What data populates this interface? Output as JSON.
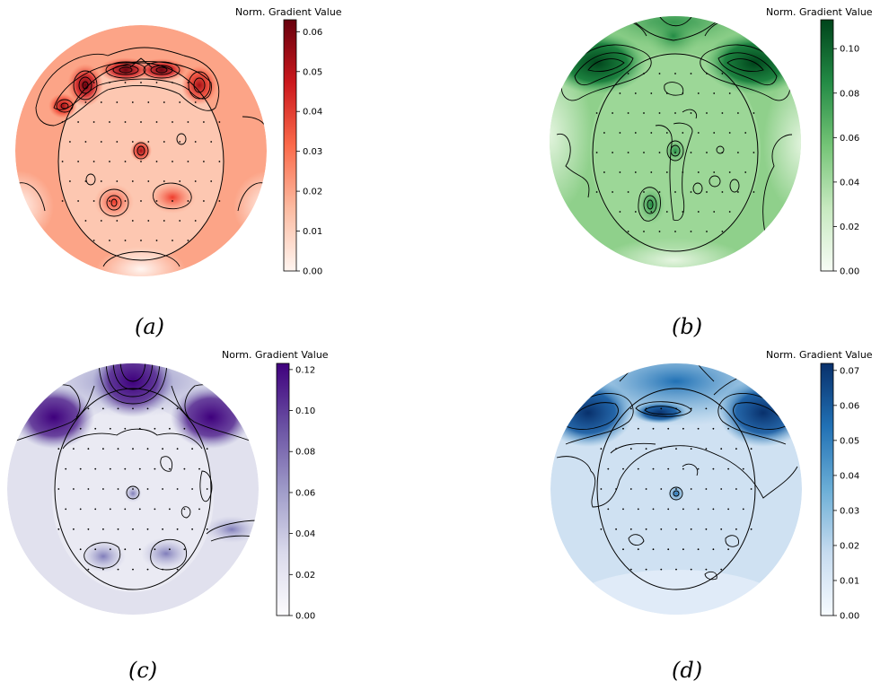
{
  "chart_data": [
    {
      "type": "heatmap",
      "subtype": "eeg-topomap",
      "panel_label": "(a)",
      "colorbar_title": "Norm. Gradient Value",
      "colormap": "Reds",
      "colors": {
        "low": "#fff5f0",
        "mid": "#fb6a4a",
        "high": "#67000d"
      },
      "vmin": 0.0,
      "vmax": 0.063,
      "ticks": [
        0.0,
        0.01,
        0.02,
        0.03,
        0.04,
        0.05,
        0.06
      ],
      "tick_labels": [
        "0.00",
        "0.01",
        "0.02",
        "0.03",
        "0.04",
        "0.05",
        "0.06"
      ],
      "background_value": 0.022,
      "hotspots": [
        {
          "region": "frontal-pole-left-center",
          "value": 0.063
        },
        {
          "region": "frontal-pole-right-center",
          "value": 0.06
        },
        {
          "region": "frontal-left",
          "value": 0.055
        },
        {
          "region": "frontal-right",
          "value": 0.052
        },
        {
          "region": "far-frontal-left",
          "value": 0.05
        },
        {
          "region": "central",
          "value": 0.04
        },
        {
          "region": "parietal-left",
          "value": 0.035
        },
        {
          "region": "parietal-right",
          "value": 0.03
        }
      ]
    },
    {
      "type": "heatmap",
      "subtype": "eeg-topomap",
      "panel_label": "(b)",
      "colorbar_title": "Norm. Gradient Value",
      "colormap": "Greens",
      "colors": {
        "low": "#f7fcf5",
        "mid": "#74c476",
        "high": "#00441b"
      },
      "vmin": 0.0,
      "vmax": 0.113,
      "ticks": [
        0.0,
        0.02,
        0.04,
        0.06,
        0.08,
        0.1
      ],
      "tick_labels": [
        "0.00",
        "0.02",
        "0.04",
        "0.06",
        "0.08",
        "0.10"
      ],
      "background_value": 0.05,
      "hotspots": [
        {
          "region": "frontal-left",
          "value": 0.113
        },
        {
          "region": "frontal-right",
          "value": 0.11
        },
        {
          "region": "frontal-pole",
          "value": 0.085
        },
        {
          "region": "central",
          "value": 0.08
        },
        {
          "region": "parietal-left",
          "value": 0.08
        }
      ]
    },
    {
      "type": "heatmap",
      "subtype": "eeg-topomap",
      "panel_label": "(c)",
      "colorbar_title": "Norm. Gradient Value",
      "colormap": "Purples",
      "colors": {
        "low": "#fcfbfd",
        "mid": "#9e9ac8",
        "high": "#3f007d"
      },
      "vmin": 0.0,
      "vmax": 0.123,
      "ticks": [
        0.0,
        0.02,
        0.04,
        0.06,
        0.08,
        0.1,
        0.12
      ],
      "tick_labels": [
        "0.00",
        "0.02",
        "0.04",
        "0.06",
        "0.08",
        "0.10",
        "0.12"
      ],
      "background_value": 0.04,
      "hotspots": [
        {
          "region": "frontal-pole",
          "value": 0.123
        },
        {
          "region": "frontal-left",
          "value": 0.115
        },
        {
          "region": "frontal-right",
          "value": 0.112
        },
        {
          "region": "parietal-left",
          "value": 0.06
        },
        {
          "region": "central",
          "value": 0.055
        }
      ]
    },
    {
      "type": "heatmap",
      "subtype": "eeg-topomap",
      "panel_label": "(d)",
      "colorbar_title": "Norm. Gradient Value",
      "colormap": "Blues",
      "colors": {
        "low": "#f7fbff",
        "mid": "#6baed6",
        "high": "#08306b"
      },
      "vmin": 0.0,
      "vmax": 0.072,
      "ticks": [
        0.0,
        0.01,
        0.02,
        0.03,
        0.04,
        0.05,
        0.06,
        0.07
      ],
      "tick_labels": [
        "0.00",
        "0.01",
        "0.02",
        "0.03",
        "0.04",
        "0.05",
        "0.06",
        "0.07"
      ],
      "background_value": 0.018,
      "hotspots": [
        {
          "region": "frontal-left",
          "value": 0.072
        },
        {
          "region": "frontal-right",
          "value": 0.07
        },
        {
          "region": "frontal-pole",
          "value": 0.065
        },
        {
          "region": "central",
          "value": 0.045
        }
      ]
    }
  ]
}
